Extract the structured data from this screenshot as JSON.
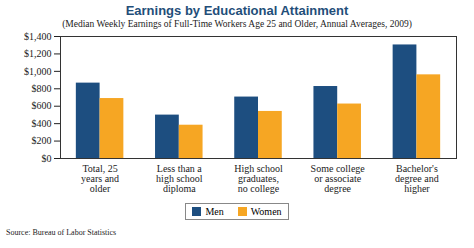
{
  "chart_data": {
    "type": "bar",
    "title": "Earnings by Educational Attainment",
    "subtitle": "(Median Weekly Earnings of Full-Time Workers Age 25 and Older, Annual Averages, 2009)",
    "caption": "Source: Bureau of Labor Statistics",
    "categories": [
      "Total, 25 years and older",
      "Less than a high school diploma",
      "High school graduates, no college",
      "Some college or associate degree",
      "Bachelor's degree and higher"
    ],
    "series": [
      {
        "name": "Men",
        "color": "#1d4e80",
        "values": [
          865,
          498,
          705,
          826,
          1303
        ]
      },
      {
        "name": "Women",
        "color": "#f6a623",
        "values": [
          688,
          382,
          540,
          625,
          960
        ]
      }
    ],
    "ylim": [
      0,
      1400
    ],
    "yticks": [
      {
        "value": 0,
        "label": "$0"
      },
      {
        "value": 200,
        "label": "$200"
      },
      {
        "value": 400,
        "label": "$400"
      },
      {
        "value": 600,
        "label": "$600"
      },
      {
        "value": 800,
        "label": "$800"
      },
      {
        "value": 1000,
        "label": "$1,000"
      },
      {
        "value": 1200,
        "label": "$1,200"
      },
      {
        "value": 1400,
        "label": "$1,400"
      }
    ],
    "grid": false,
    "legend": "bottom"
  }
}
